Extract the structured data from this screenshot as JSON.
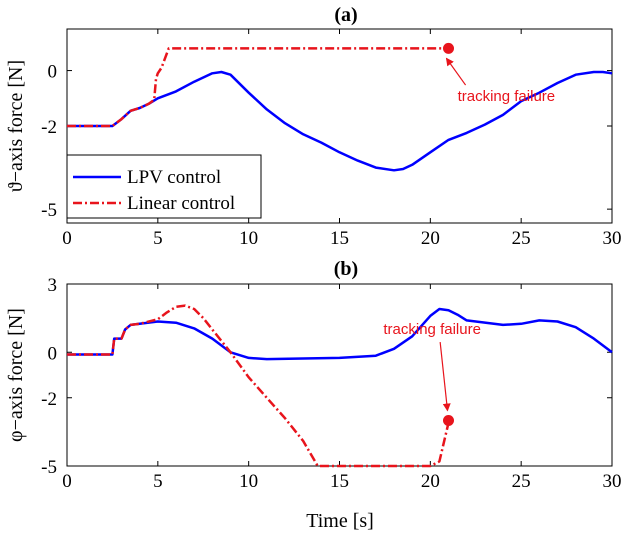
{
  "chart_data": [
    {
      "type": "line",
      "title": "(a)",
      "xlabel": "",
      "ylabel": "ϑ−axis force [N]",
      "xlim": [
        0,
        30
      ],
      "ylim": [
        -5.5,
        1.5
      ],
      "xticks": [
        "0",
        "5",
        "10",
        "15",
        "20",
        "25",
        "30"
      ],
      "yticks": [
        "-5",
        "-2",
        "0"
      ],
      "ytick_values": [
        -5,
        -2,
        0
      ],
      "grid": false,
      "legend": {
        "placement": "bottom-left",
        "entries": [
          "LPV control",
          "Linear control"
        ]
      },
      "series": [
        {
          "name": "LPV control",
          "color": "#0000ff",
          "style": "solid",
          "points": [
            [
              0,
              -2
            ],
            [
              2.5,
              -2
            ],
            [
              3,
              -1.75
            ],
            [
              3.5,
              -1.45
            ],
            [
              4,
              -1.35
            ],
            [
              4.5,
              -1.2
            ],
            [
              5,
              -1.0
            ],
            [
              6,
              -0.75
            ],
            [
              7,
              -0.4
            ],
            [
              8,
              -0.1
            ],
            [
              8.5,
              -0.05
            ],
            [
              9,
              -0.15
            ],
            [
              10,
              -0.8
            ],
            [
              11,
              -1.4
            ],
            [
              12,
              -1.9
            ],
            [
              13,
              -2.3
            ],
            [
              14,
              -2.6
            ],
            [
              15,
              -2.95
            ],
            [
              16,
              -3.25
            ],
            [
              17,
              -3.5
            ],
            [
              18,
              -3.6
            ],
            [
              18.5,
              -3.55
            ],
            [
              19,
              -3.4
            ],
            [
              20,
              -2.95
            ],
            [
              21,
              -2.5
            ],
            [
              22,
              -2.25
            ],
            [
              23,
              -1.95
            ],
            [
              24,
              -1.6
            ],
            [
              25,
              -1.1
            ],
            [
              26,
              -0.8
            ],
            [
              27,
              -0.45
            ],
            [
              28,
              -0.15
            ],
            [
              29,
              -0.05
            ],
            [
              29.5,
              -0.05
            ],
            [
              30,
              -0.1
            ]
          ]
        },
        {
          "name": "Linear control",
          "color": "#e8141c",
          "style": "dash-dot",
          "points": [
            [
              0,
              -2
            ],
            [
              2.5,
              -2
            ],
            [
              3,
              -1.75
            ],
            [
              3.5,
              -1.45
            ],
            [
              4,
              -1.35
            ],
            [
              4.5,
              -1.2
            ],
            [
              4.8,
              -1.05
            ],
            [
              4.9,
              -0.3
            ],
            [
              5,
              -0.1
            ],
            [
              5.2,
              0.1
            ],
            [
              5.6,
              0.8
            ],
            [
              10,
              0.8
            ],
            [
              15,
              0.8
            ],
            [
              21,
              0.8
            ]
          ]
        }
      ],
      "marker": {
        "x": 21,
        "y": 0.8
      },
      "annotation": {
        "text": "tracking failure",
        "x": 21.5,
        "y": -1.1
      }
    },
    {
      "type": "line",
      "title": "(b)",
      "xlabel": "Time [s]",
      "ylabel": "φ−axis force [N]",
      "xlim": [
        0,
        30
      ],
      "ylim": [
        -5,
        3
      ],
      "xticks": [
        "0",
        "5",
        "10",
        "15",
        "20",
        "25",
        "30"
      ],
      "yticks": [
        "-5",
        "-2",
        "0",
        "3"
      ],
      "ytick_values": [
        -5,
        -2,
        0,
        3
      ],
      "grid": false,
      "series": [
        {
          "name": "LPV control",
          "color": "#0000ff",
          "style": "solid",
          "points": [
            [
              0,
              -0.1
            ],
            [
              2.5,
              -0.1
            ],
            [
              2.6,
              0.6
            ],
            [
              3,
              0.6
            ],
            [
              3.2,
              1.0
            ],
            [
              3.5,
              1.2
            ],
            [
              4,
              1.25
            ],
            [
              5,
              1.35
            ],
            [
              6,
              1.3
            ],
            [
              7,
              1.05
            ],
            [
              8,
              0.6
            ],
            [
              9,
              0.0
            ],
            [
              10,
              -0.25
            ],
            [
              11,
              -0.3
            ],
            [
              15,
              -0.25
            ],
            [
              17,
              -0.15
            ],
            [
              18,
              0.15
            ],
            [
              19,
              0.7
            ],
            [
              20,
              1.6
            ],
            [
              20.5,
              1.9
            ],
            [
              21,
              1.85
            ],
            [
              21.5,
              1.65
            ],
            [
              22,
              1.4
            ],
            [
              24,
              1.2
            ],
            [
              25,
              1.25
            ],
            [
              26,
              1.4
            ],
            [
              27,
              1.35
            ],
            [
              28,
              1.1
            ],
            [
              29,
              0.6
            ],
            [
              30,
              0.0
            ]
          ]
        },
        {
          "name": "Linear control",
          "color": "#e8141c",
          "style": "dash-dot",
          "points": [
            [
              0,
              -0.1
            ],
            [
              2.5,
              -0.1
            ],
            [
              2.6,
              0.6
            ],
            [
              3,
              0.6
            ],
            [
              3.2,
              1.0
            ],
            [
              3.5,
              1.2
            ],
            [
              4,
              1.25
            ],
            [
              5,
              1.45
            ],
            [
              5.5,
              1.75
            ],
            [
              6,
              2.0
            ],
            [
              6.5,
              2.05
            ],
            [
              7,
              1.9
            ],
            [
              7.5,
              1.5
            ],
            [
              8,
              1.0
            ],
            [
              9,
              0.0
            ],
            [
              10,
              -1.1
            ],
            [
              11,
              -2.0
            ],
            [
              12,
              -2.9
            ],
            [
              13,
              -3.9
            ],
            [
              13.8,
              -5.0
            ],
            [
              20,
              -5.0
            ],
            [
              20.5,
              -4.8
            ],
            [
              21,
              -3.1
            ]
          ]
        }
      ],
      "marker": {
        "x": 21,
        "y": -3.0
      },
      "annotation": {
        "text": "tracking failure",
        "x": 20.1,
        "y": 0.8
      }
    }
  ]
}
